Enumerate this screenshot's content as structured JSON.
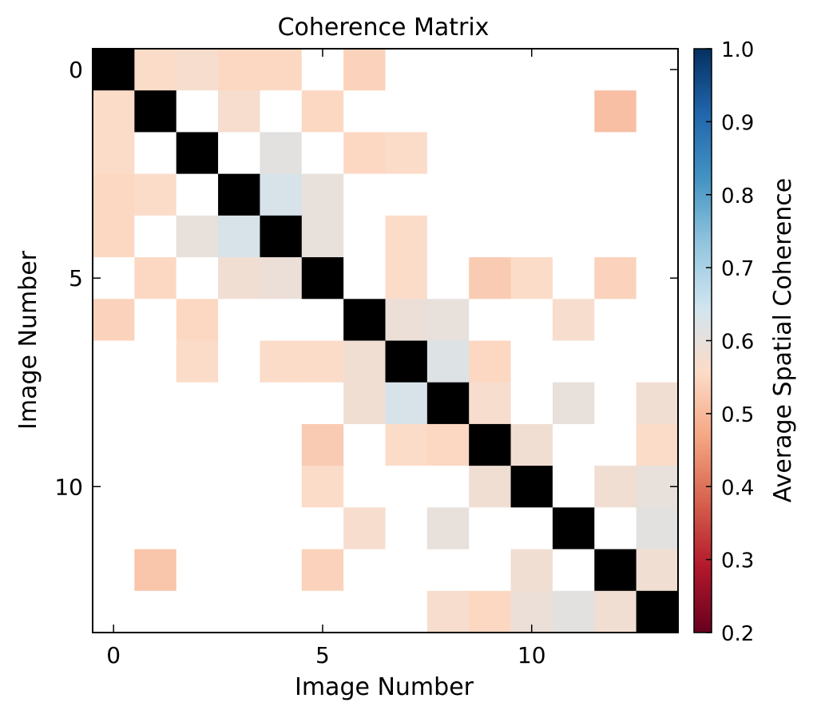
{
  "chart_data": {
    "type": "heatmap",
    "title": "Coherence Matrix",
    "xlabel": "Image Number",
    "ylabel": "Image Number",
    "x_ticks": [
      0,
      5,
      10
    ],
    "y_ticks": [
      0,
      5,
      10
    ],
    "colorbar": {
      "label": "Average Spatial Coherence",
      "range": [
        0.2,
        1.0
      ],
      "ticks": [
        "0.2",
        "0.3",
        "0.4",
        "0.5",
        "0.6",
        "0.7",
        "0.8",
        "0.9",
        "1.0"
      ],
      "colormap": "RdBu",
      "stops": [
        "#67001f",
        "#b2182b",
        "#d6604d",
        "#f4a582",
        "#fddbc7",
        "#d1e5f0",
        "#92c5de",
        "#4393c3",
        "#2166ac",
        "#053061"
      ]
    },
    "diagonal_color": "#000000",
    "missing_color": "#ffffff",
    "size": 14,
    "matrix": [
      [
        null,
        0.56,
        0.57,
        0.55,
        0.55,
        0,
        0.54,
        0,
        0,
        0,
        0,
        0,
        0,
        0
      ],
      [
        0.56,
        null,
        0,
        0.57,
        0,
        0.55,
        0,
        0,
        0,
        0,
        0,
        0,
        0.51,
        0
      ],
      [
        0.56,
        0,
        null,
        0,
        0.61,
        0,
        0.55,
        0.56,
        0,
        0,
        0,
        0,
        0,
        0
      ],
      [
        0.55,
        0.56,
        0,
        null,
        0.63,
        0.6,
        0,
        0,
        0,
        0,
        0,
        0,
        0,
        0
      ],
      [
        0.55,
        0,
        0.6,
        0.63,
        null,
        0.6,
        0,
        0.56,
        0,
        0,
        0,
        0,
        0,
        0
      ],
      [
        0,
        0.55,
        0,
        0.58,
        0.59,
        null,
        0,
        0.56,
        0,
        0.53,
        0.56,
        0,
        0.54,
        0
      ],
      [
        0.54,
        0,
        0.55,
        0,
        0,
        0,
        null,
        0.59,
        0.6,
        0,
        0,
        0.57,
        0,
        0
      ],
      [
        0,
        0,
        0.56,
        0,
        0.56,
        0.56,
        0.58,
        null,
        0.62,
        0.55,
        0,
        0,
        0,
        0
      ],
      [
        0,
        0,
        0,
        0,
        0,
        0,
        0.58,
        0.63,
        null,
        0.57,
        0,
        0.6,
        0,
        0.58
      ],
      [
        0,
        0,
        0,
        0,
        0,
        0.53,
        0,
        0.56,
        0.55,
        null,
        0.58,
        0,
        0,
        0.56
      ],
      [
        0,
        0,
        0,
        0,
        0,
        0.56,
        0,
        0,
        0,
        0.58,
        null,
        0,
        0.58,
        0.6
      ],
      [
        0,
        0,
        0,
        0,
        0,
        0,
        0.57,
        0,
        0.6,
        0,
        0,
        null,
        0,
        0.61
      ],
      [
        0,
        0.52,
        0,
        0,
        0,
        0.54,
        0,
        0,
        0,
        0,
        0.58,
        0,
        null,
        0.58
      ],
      [
        0,
        0,
        0,
        0,
        0,
        0,
        0,
        0,
        0.57,
        0.55,
        0.59,
        0.61,
        0.58,
        null
      ]
    ]
  }
}
